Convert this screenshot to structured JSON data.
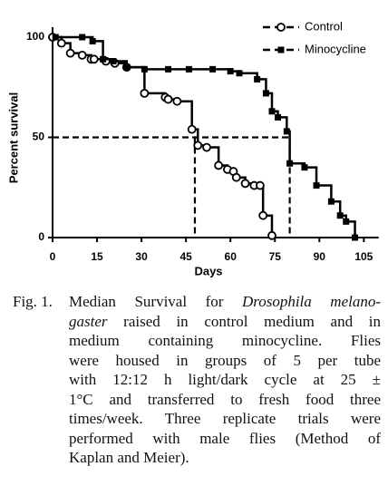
{
  "chart_data": {
    "type": "survival",
    "xlabel": "Days",
    "ylabel": "Percent survival",
    "xlim": [
      0,
      110
    ],
    "ylim": [
      0,
      105
    ],
    "xticks": [
      0,
      15,
      30,
      45,
      60,
      75,
      90,
      105
    ],
    "yticks": [
      0,
      50,
      100
    ],
    "legend": "upper right",
    "median_level": 50,
    "medians": [
      48,
      80
    ],
    "series": [
      {
        "name": "Control",
        "color": "#000000",
        "marker": "circle",
        "x": [
          0,
          3,
          6,
          10,
          13,
          14,
          18,
          21,
          25,
          31,
          38,
          39,
          42,
          47,
          49,
          52,
          56,
          59,
          61,
          62,
          65,
          68,
          70,
          71,
          74
        ],
        "values": [
          100,
          97,
          92,
          91,
          89,
          89,
          88,
          87,
          85,
          72,
          70,
          69,
          68,
          54,
          46,
          45,
          36,
          34,
          33,
          30,
          27,
          26,
          26,
          11,
          1
        ]
      },
      {
        "name": "Minocycline",
        "color": "#000000",
        "marker": "square",
        "x": [
          1,
          10,
          13.5,
          17,
          20.5,
          25,
          31,
          39,
          46,
          54,
          60,
          63,
          69,
          72,
          74,
          76,
          79,
          80,
          85,
          89,
          94,
          97,
          99,
          102
        ],
        "values": [
          100,
          100,
          98,
          89,
          88,
          85,
          84,
          84,
          84,
          84,
          83,
          82,
          79,
          72,
          63,
          60,
          53,
          37,
          35,
          26,
          18,
          11,
          8,
          0
        ]
      }
    ]
  },
  "caption": {
    "label": "Fig. 1.",
    "lines": [
      [
        {
          "text": "Median Survival for "
        },
        {
          "text": "Drosophila melano-",
          "italic": true
        }
      ],
      [
        {
          "text": "gaster",
          "italic": true
        },
        {
          "text": " raised in control medium and in"
        }
      ],
      [
        {
          "text": "medium containing minocycline. Flies"
        }
      ],
      [
        {
          "text": "were housed in groups of 5 per tube"
        }
      ],
      [
        {
          "text": "with 12:12 h light/dark cycle at 25 ±"
        }
      ],
      [
        {
          "text": "1°C and transferred to fresh food three"
        }
      ],
      [
        {
          "text": "times/week. Three replicate trials were"
        }
      ],
      [
        {
          "text": "performed with male flies (Method of"
        }
      ],
      [
        {
          "text": "Kaplan and Meier)."
        }
      ]
    ]
  }
}
